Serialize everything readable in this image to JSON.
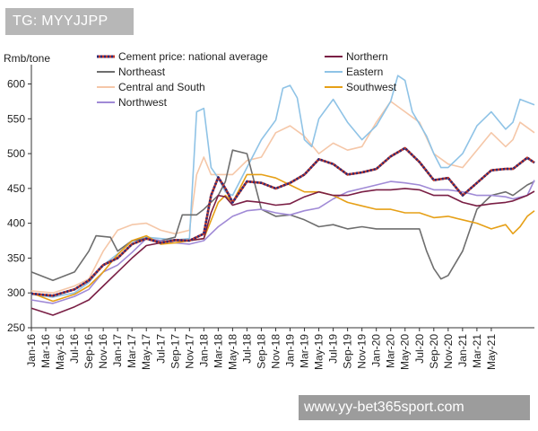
{
  "watermark_top": "TG: MYYJJPP",
  "watermark_bottom": "www.yy-bet365sport.com",
  "chart_data": {
    "type": "line",
    "ylabel": "Rmb/tone",
    "ylim": [
      250,
      620
    ],
    "yticks": [
      250,
      300,
      350,
      400,
      450,
      500,
      550,
      600
    ],
    "xtick_labels": [
      "Jan-16",
      "Mar-16",
      "May-16",
      "Jul-16",
      "Sep-16",
      "Nov-16",
      "Jan-17",
      "Mar-17",
      "May-17",
      "Jul-17",
      "Sep-17",
      "Nov-17",
      "Jan-18",
      "Mar-18",
      "May-18",
      "Jul-18",
      "Sep-18",
      "Nov-18",
      "Jan-19",
      "Mar-19",
      "May-19",
      "Jul-19",
      "Sep-19",
      "Nov-19",
      "Jan-20",
      "Mar-20",
      "May-20",
      "Jul-20",
      "Sep-20",
      "Nov-20",
      "Jan-21",
      "Mar-21",
      "May-21"
    ],
    "x_range_months": [
      0,
      66
    ],
    "series": [
      {
        "name": "Cement price: national average",
        "color": "#2a2a7a",
        "dotted": true,
        "points": [
          [
            0,
            299
          ],
          [
            3,
            296
          ],
          [
            6,
            305
          ],
          [
            8,
            318
          ],
          [
            10,
            340
          ],
          [
            12,
            350
          ],
          [
            14,
            370
          ],
          [
            16,
            378
          ],
          [
            18,
            372
          ],
          [
            20,
            376
          ],
          [
            22,
            375
          ],
          [
            24,
            385
          ],
          [
            25,
            440
          ],
          [
            26,
            466
          ],
          [
            27,
            450
          ],
          [
            28,
            430
          ],
          [
            30,
            460
          ],
          [
            32,
            458
          ],
          [
            34,
            450
          ],
          [
            36,
            458
          ],
          [
            38,
            470
          ],
          [
            40,
            492
          ],
          [
            42,
            485
          ],
          [
            44,
            470
          ],
          [
            46,
            473
          ],
          [
            48,
            478
          ],
          [
            50,
            496
          ],
          [
            52,
            508
          ],
          [
            54,
            488
          ],
          [
            56,
            462
          ],
          [
            58,
            465
          ],
          [
            60,
            440
          ],
          [
            62,
            458
          ],
          [
            64,
            476
          ],
          [
            66,
            478
          ],
          [
            67,
            478
          ],
          [
            69,
            494
          ],
          [
            70,
            487
          ]
        ]
      },
      {
        "name": "Northern",
        "color": "#7a1f45",
        "points": [
          [
            0,
            278
          ],
          [
            3,
            268
          ],
          [
            6,
            280
          ],
          [
            8,
            290
          ],
          [
            10,
            310
          ],
          [
            12,
            330
          ],
          [
            14,
            350
          ],
          [
            16,
            368
          ],
          [
            18,
            372
          ],
          [
            20,
            375
          ],
          [
            22,
            375
          ],
          [
            24,
            378
          ],
          [
            25,
            415
          ],
          [
            26,
            440
          ],
          [
            27,
            438
          ],
          [
            28,
            426
          ],
          [
            30,
            432
          ],
          [
            32,
            430
          ],
          [
            34,
            426
          ],
          [
            36,
            428
          ],
          [
            38,
            438
          ],
          [
            40,
            445
          ],
          [
            42,
            440
          ],
          [
            44,
            440
          ],
          [
            46,
            445
          ],
          [
            48,
            448
          ],
          [
            50,
            448
          ],
          [
            52,
            450
          ],
          [
            54,
            448
          ],
          [
            56,
            440
          ],
          [
            58,
            440
          ],
          [
            60,
            430
          ],
          [
            62,
            425
          ],
          [
            64,
            428
          ],
          [
            66,
            430
          ],
          [
            67,
            432
          ],
          [
            69,
            440
          ],
          [
            70,
            446
          ]
        ]
      },
      {
        "name": "Eastern",
        "color": "#8fc3e6",
        "points": [
          [
            0,
            298
          ],
          [
            3,
            294
          ],
          [
            6,
            300
          ],
          [
            8,
            315
          ],
          [
            10,
            340
          ],
          [
            12,
            356
          ],
          [
            14,
            374
          ],
          [
            16,
            380
          ],
          [
            18,
            378
          ],
          [
            20,
            376
          ],
          [
            22,
            378
          ],
          [
            23,
            560
          ],
          [
            24,
            565
          ],
          [
            25,
            480
          ],
          [
            26,
            465
          ],
          [
            27,
            445
          ],
          [
            28,
            440
          ],
          [
            30,
            480
          ],
          [
            32,
            520
          ],
          [
            34,
            548
          ],
          [
            35,
            594
          ],
          [
            36,
            598
          ],
          [
            37,
            580
          ],
          [
            38,
            520
          ],
          [
            39,
            510
          ],
          [
            40,
            550
          ],
          [
            42,
            578
          ],
          [
            44,
            545
          ],
          [
            46,
            520
          ],
          [
            48,
            540
          ],
          [
            50,
            575
          ],
          [
            51,
            612
          ],
          [
            52,
            605
          ],
          [
            53,
            560
          ],
          [
            55,
            525
          ],
          [
            56,
            500
          ],
          [
            57,
            480
          ],
          [
            58,
            480
          ],
          [
            60,
            500
          ],
          [
            62,
            540
          ],
          [
            64,
            560
          ],
          [
            66,
            535
          ],
          [
            67,
            545
          ],
          [
            68,
            578
          ],
          [
            70,
            570
          ]
        ]
      },
      {
        "name": "Central and South",
        "color": "#f5c7a8",
        "points": [
          [
            0,
            303
          ],
          [
            3,
            300
          ],
          [
            6,
            310
          ],
          [
            8,
            320
          ],
          [
            10,
            360
          ],
          [
            12,
            390
          ],
          [
            14,
            398
          ],
          [
            16,
            400
          ],
          [
            18,
            390
          ],
          [
            20,
            385
          ],
          [
            22,
            390
          ],
          [
            23,
            470
          ],
          [
            24,
            495
          ],
          [
            25,
            470
          ],
          [
            26,
            470
          ],
          [
            28,
            470
          ],
          [
            30,
            490
          ],
          [
            32,
            495
          ],
          [
            34,
            530
          ],
          [
            36,
            540
          ],
          [
            38,
            525
          ],
          [
            40,
            500
          ],
          [
            42,
            515
          ],
          [
            44,
            505
          ],
          [
            46,
            510
          ],
          [
            48,
            545
          ],
          [
            50,
            575
          ],
          [
            52,
            560
          ],
          [
            54,
            545
          ],
          [
            56,
            500
          ],
          [
            58,
            485
          ],
          [
            60,
            480
          ],
          [
            62,
            505
          ],
          [
            64,
            530
          ],
          [
            66,
            510
          ],
          [
            67,
            520
          ],
          [
            68,
            545
          ],
          [
            70,
            530
          ]
        ]
      },
      {
        "name": "Northeast",
        "color": "#6e6e6e",
        "points": [
          [
            0,
            330
          ],
          [
            3,
            318
          ],
          [
            6,
            330
          ],
          [
            8,
            360
          ],
          [
            9,
            382
          ],
          [
            11,
            380
          ],
          [
            12,
            360
          ],
          [
            14,
            375
          ],
          [
            16,
            378
          ],
          [
            18,
            375
          ],
          [
            20,
            380
          ],
          [
            21,
            412
          ],
          [
            23,
            412
          ],
          [
            24,
            420
          ],
          [
            26,
            440
          ],
          [
            27,
            460
          ],
          [
            28,
            505
          ],
          [
            30,
            500
          ],
          [
            32,
            420
          ],
          [
            34,
            410
          ],
          [
            36,
            412
          ],
          [
            38,
            405
          ],
          [
            40,
            395
          ],
          [
            42,
            398
          ],
          [
            44,
            392
          ],
          [
            46,
            395
          ],
          [
            48,
            392
          ],
          [
            50,
            392
          ],
          [
            52,
            392
          ],
          [
            54,
            392
          ],
          [
            55,
            360
          ],
          [
            56,
            335
          ],
          [
            57,
            320
          ],
          [
            58,
            325
          ],
          [
            60,
            360
          ],
          [
            62,
            420
          ],
          [
            64,
            440
          ],
          [
            66,
            445
          ],
          [
            67,
            440
          ],
          [
            69,
            455
          ],
          [
            70,
            460
          ]
        ]
      },
      {
        "name": "Southwest",
        "color": "#e6a017",
        "points": [
          [
            0,
            300
          ],
          [
            3,
            288
          ],
          [
            6,
            298
          ],
          [
            8,
            310
          ],
          [
            10,
            330
          ],
          [
            12,
            355
          ],
          [
            14,
            375
          ],
          [
            16,
            382
          ],
          [
            18,
            370
          ],
          [
            20,
            372
          ],
          [
            22,
            375
          ],
          [
            24,
            378
          ],
          [
            26,
            430
          ],
          [
            27,
            440
          ],
          [
            28,
            430
          ],
          [
            30,
            470
          ],
          [
            32,
            470
          ],
          [
            34,
            465
          ],
          [
            36,
            455
          ],
          [
            38,
            445
          ],
          [
            40,
            445
          ],
          [
            42,
            440
          ],
          [
            44,
            430
          ],
          [
            46,
            425
          ],
          [
            48,
            420
          ],
          [
            50,
            420
          ],
          [
            52,
            415
          ],
          [
            54,
            415
          ],
          [
            56,
            408
          ],
          [
            58,
            410
          ],
          [
            60,
            405
          ],
          [
            62,
            400
          ],
          [
            64,
            392
          ],
          [
            66,
            398
          ],
          [
            67,
            385
          ],
          [
            68,
            395
          ],
          [
            69,
            410
          ],
          [
            70,
            418
          ]
        ]
      },
      {
        "name": "Northwest",
        "color": "#a08ad6",
        "points": [
          [
            0,
            290
          ],
          [
            3,
            285
          ],
          [
            6,
            295
          ],
          [
            8,
            305
          ],
          [
            10,
            330
          ],
          [
            12,
            340
          ],
          [
            14,
            358
          ],
          [
            16,
            378
          ],
          [
            18,
            375
          ],
          [
            20,
            372
          ],
          [
            22,
            370
          ],
          [
            24,
            375
          ],
          [
            26,
            395
          ],
          [
            28,
            410
          ],
          [
            30,
            418
          ],
          [
            32,
            420
          ],
          [
            34,
            415
          ],
          [
            36,
            412
          ],
          [
            38,
            418
          ],
          [
            40,
            422
          ],
          [
            42,
            435
          ],
          [
            44,
            445
          ],
          [
            46,
            450
          ],
          [
            48,
            455
          ],
          [
            50,
            460
          ],
          [
            52,
            458
          ],
          [
            54,
            455
          ],
          [
            56,
            448
          ],
          [
            58,
            448
          ],
          [
            60,
            445
          ],
          [
            62,
            440
          ],
          [
            64,
            440
          ],
          [
            66,
            438
          ],
          [
            67,
            435
          ],
          [
            69,
            440
          ],
          [
            70,
            462
          ]
        ]
      }
    ]
  }
}
